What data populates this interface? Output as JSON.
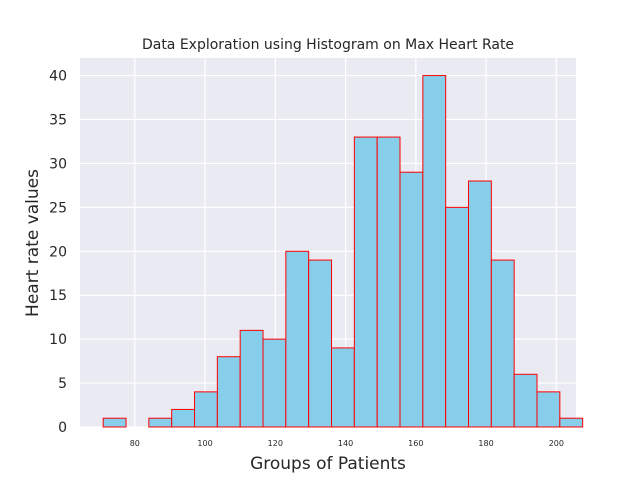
{
  "chart_data": {
    "type": "bar",
    "title": "Data Exploration using Histogram on Max Heart Rate",
    "xlabel": "Groups of Patients",
    "ylabel": "Heart rate values",
    "xlim": [
      64.4,
      205.6
    ],
    "ylim": [
      0,
      42
    ],
    "bin_start": 71,
    "bin_width": 6.5,
    "values": [
      1,
      0,
      1,
      2,
      4,
      8,
      11,
      10,
      20,
      19,
      9,
      33,
      33,
      29,
      40,
      25,
      28,
      19,
      6,
      4,
      1
    ],
    "xticks": [
      80,
      100,
      120,
      140,
      160,
      180,
      200
    ],
    "yticks": [
      0,
      5,
      10,
      15,
      20,
      25,
      30,
      35,
      40
    ],
    "bar_color": "#87ceeb",
    "edge_color": "#ff0000",
    "background_color": "#eaeaf2",
    "grid": true,
    "legend": false
  }
}
